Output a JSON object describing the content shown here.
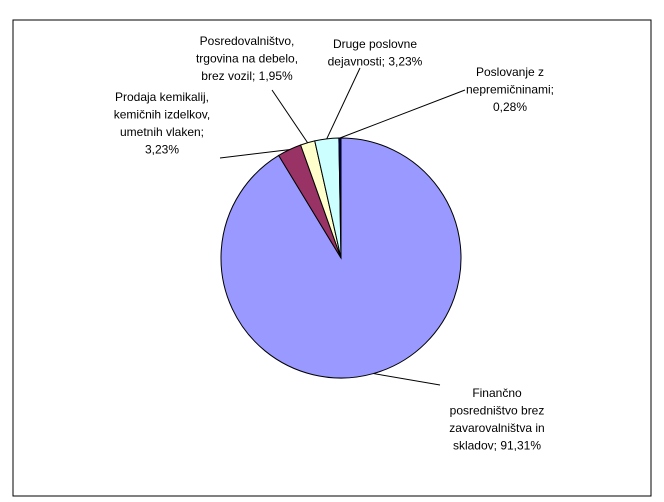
{
  "chart_data": {
    "type": "pie",
    "categories": [
      [
        "Finančno",
        "posredništvo brez",
        "zavarovalništva in",
        "skladov; 91,31%"
      ],
      [
        "Prodaja kemikalij,",
        "kemičnih izdelkov,",
        "umetnih vlaken;",
        "3,23%"
      ],
      [
        "Posredovalništvo,",
        "trgovina na debelo,",
        "brez vozil; 1,95%"
      ],
      [
        "Druge poslovne",
        "dejavnosti; 3,23%"
      ],
      [
        "Poslovanje z",
        "nepremičninami;",
        "0,28%"
      ]
    ],
    "values": [
      91.31,
      3.23,
      1.95,
      3.23,
      0.28
    ],
    "colors": [
      "#9999ff",
      "#993366",
      "#ffffcc",
      "#ccffff",
      "#000080"
    ]
  }
}
